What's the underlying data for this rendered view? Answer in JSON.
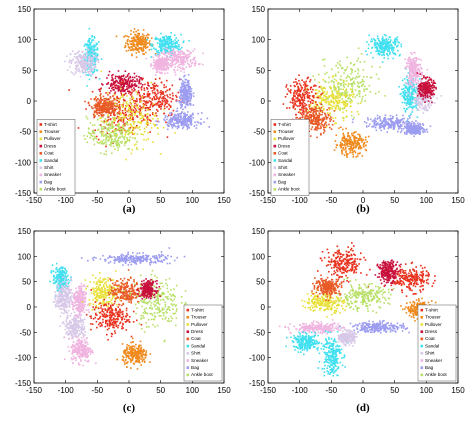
{
  "figure": {
    "classes": [
      "T-shirt",
      "Trouser",
      "Pullover",
      "Dress",
      "Coat",
      "Sandal",
      "Shirt",
      "Sneaker",
      "Bag",
      "Ankle boot"
    ],
    "class_colors": [
      "#e8301c",
      "#f08a1c",
      "#e8e038",
      "#c8103c",
      "#e85a26",
      "#40e0f0",
      "#d8c8e8",
      "#f0b4e0",
      "#9c9cf0",
      "#b8e068"
    ]
  },
  "chart_data": [
    {
      "type": "scatter",
      "panel_label": "(a)",
      "xlim": [
        -150,
        150
      ],
      "ylim": [
        -150,
        150
      ],
      "xticks": [
        -150,
        -100,
        -50,
        0,
        50,
        100,
        150
      ],
      "yticks": [
        -150,
        -100,
        -50,
        0,
        50,
        100,
        150
      ],
      "legend_position": "left",
      "legend": [
        "T-shirt",
        "Trouser",
        "Pullover",
        "Dress",
        "Coat",
        "Sandal",
        "Shirt",
        "Sneaker",
        "Bag",
        "Ankle boot"
      ],
      "series": [
        {
          "cls": 1,
          "clusters": [
            {
              "x": 15,
              "y": 95,
              "sx": 10,
              "sy": 9
            }
          ]
        },
        {
          "cls": 5,
          "clusters": [
            {
              "x": -60,
              "y": 72,
              "sx": 6,
              "sy": 14
            },
            {
              "x": 60,
              "y": 92,
              "sx": 11,
              "sy": 8
            }
          ]
        },
        {
          "cls": 6,
          "clusters": [
            {
              "x": -72,
              "y": 62,
              "sx": 10,
              "sy": 10
            }
          ]
        },
        {
          "cls": 7,
          "clusters": [
            {
              "x": 80,
              "y": 68,
              "sx": 14,
              "sy": 8
            },
            {
              "x": 50,
              "y": 60,
              "sx": 6,
              "sy": 6
            }
          ]
        },
        {
          "cls": 3,
          "clusters": [
            {
              "x": -10,
              "y": 28,
              "sx": 14,
              "sy": 8
            }
          ]
        },
        {
          "cls": 0,
          "clusters": [
            {
              "x": 40,
              "y": 5,
              "sx": 20,
              "sy": 15
            },
            {
              "x": -10,
              "y": -20,
              "sx": 25,
              "sy": 18
            }
          ]
        },
        {
          "cls": 2,
          "clusters": [
            {
              "x": 0,
              "y": -30,
              "sx": 22,
              "sy": 22
            }
          ]
        },
        {
          "cls": 9,
          "clusters": [
            {
              "x": -30,
              "y": -55,
              "sx": 18,
              "sy": 14
            }
          ]
        },
        {
          "cls": 4,
          "clusters": [
            {
              "x": -40,
              "y": -8,
              "sx": 10,
              "sy": 8
            }
          ]
        },
        {
          "cls": 8,
          "clusters": [
            {
              "x": 90,
              "y": 10,
              "sx": 5,
              "sy": 12
            },
            {
              "x": 82,
              "y": -32,
              "sx": 14,
              "sy": 6
            }
          ]
        }
      ]
    },
    {
      "type": "scatter",
      "panel_label": "(b)",
      "xlim": [
        -150,
        150
      ],
      "ylim": [
        -150,
        150
      ],
      "xticks": [
        -150,
        -100,
        -50,
        0,
        50,
        100,
        150
      ],
      "yticks": [
        -150,
        -100,
        -50,
        0,
        50,
        100,
        150
      ],
      "legend_position": "left",
      "legend": [
        "T-shirt",
        "Trouser",
        "Pullover",
        "Dress",
        "Coat",
        "Sandal",
        "Shirt",
        "Sneaker",
        "Bag",
        "Ankle boot"
      ],
      "series": [
        {
          "cls": 9,
          "clusters": [
            {
              "x": -25,
              "y": 25,
              "sx": 22,
              "sy": 22
            }
          ]
        },
        {
          "cls": 2,
          "clusters": [
            {
              "x": -50,
              "y": 0,
              "sx": 18,
              "sy": 15
            }
          ]
        },
        {
          "cls": 0,
          "clusters": [
            {
              "x": -95,
              "y": 5,
              "sx": 12,
              "sy": 15
            }
          ]
        },
        {
          "cls": 4,
          "clusters": [
            {
              "x": -75,
              "y": -30,
              "sx": 12,
              "sy": 10
            }
          ]
        },
        {
          "cls": 1,
          "clusters": [
            {
              "x": -20,
              "y": -70,
              "sx": 12,
              "sy": 9
            }
          ]
        },
        {
          "cls": 5,
          "clusters": [
            {
              "x": 35,
              "y": 90,
              "sx": 12,
              "sy": 8
            },
            {
              "x": 75,
              "y": 10,
              "sx": 6,
              "sy": 15
            }
          ]
        },
        {
          "cls": 6,
          "clusters": [
            {
              "x": 95,
              "y": 5,
              "sx": 8,
              "sy": 10
            }
          ]
        },
        {
          "cls": 7,
          "clusters": [
            {
              "x": 80,
              "y": 50,
              "sx": 6,
              "sy": 12
            }
          ]
        },
        {
          "cls": 8,
          "clusters": [
            {
              "x": 45,
              "y": -36,
              "sx": 20,
              "sy": 5
            },
            {
              "x": 80,
              "y": -46,
              "sx": 8,
              "sy": 4
            }
          ]
        },
        {
          "cls": 3,
          "clusters": [
            {
              "x": 100,
              "y": 20,
              "sx": 6,
              "sy": 8
            }
          ]
        }
      ]
    },
    {
      "type": "scatter",
      "panel_label": "(c)",
      "xlim": [
        -150,
        150
      ],
      "ylim": [
        -150,
        150
      ],
      "xticks": [
        -150,
        -100,
        -50,
        0,
        50,
        100,
        150
      ],
      "yticks": [
        -150,
        -100,
        -50,
        0,
        50,
        100,
        150
      ],
      "legend_position": "right",
      "legend": [
        "T-shirt",
        "Trouser",
        "Pullover",
        "Dress",
        "Coat",
        "Sandal",
        "Shirt",
        "Sneaker",
        "Bag",
        "Ankle boot"
      ],
      "series": [
        {
          "cls": 8,
          "clusters": [
            {
              "x": 10,
              "y": 95,
              "sx": 28,
              "sy": 5
            }
          ]
        },
        {
          "cls": 5,
          "clusters": [
            {
              "x": -108,
              "y": 55,
              "sx": 6,
              "sy": 12
            }
          ]
        },
        {
          "cls": 6,
          "clusters": [
            {
              "x": -103,
              "y": 20,
              "sx": 6,
              "sy": 15
            },
            {
              "x": -85,
              "y": -40,
              "sx": 8,
              "sy": 12
            }
          ]
        },
        {
          "cls": 7,
          "clusters": [
            {
              "x": -78,
              "y": 10,
              "sx": 5,
              "sy": 15
            },
            {
              "x": -75,
              "y": -85,
              "sx": 8,
              "sy": 12
            }
          ]
        },
        {
          "cls": 2,
          "clusters": [
            {
              "x": -40,
              "y": 30,
              "sx": 12,
              "sy": 15
            }
          ]
        },
        {
          "cls": 0,
          "clusters": [
            {
              "x": -30,
              "y": -20,
              "sx": 15,
              "sy": 15
            }
          ]
        },
        {
          "cls": 4,
          "clusters": [
            {
              "x": -5,
              "y": 30,
              "sx": 12,
              "sy": 12
            }
          ]
        },
        {
          "cls": 9,
          "clusters": [
            {
              "x": 45,
              "y": 10,
              "sx": 18,
              "sy": 25
            }
          ]
        },
        {
          "cls": 1,
          "clusters": [
            {
              "x": 10,
              "y": -95,
              "sx": 10,
              "sy": 10
            }
          ]
        },
        {
          "cls": 3,
          "clusters": [
            {
              "x": 30,
              "y": 35,
              "sx": 6,
              "sy": 8
            }
          ]
        }
      ]
    },
    {
      "type": "scatter",
      "panel_label": "(d)",
      "xlim": [
        -150,
        150
      ],
      "ylim": [
        -150,
        150
      ],
      "xticks": [
        -150,
        -100,
        -50,
        0,
        50,
        100,
        150
      ],
      "yticks": [
        -150,
        -100,
        -50,
        0,
        50,
        100,
        150
      ],
      "legend_position": "right",
      "legend": [
        "T-shirt",
        "Trouser",
        "Pullover",
        "Dress",
        "Coat",
        "Sandal",
        "Shirt",
        "Sneaker",
        "Bag",
        "Ankle boot"
      ],
      "series": [
        {
          "cls": 0,
          "clusters": [
            {
              "x": -30,
              "y": 85,
              "sx": 15,
              "sy": 15
            },
            {
              "x": 75,
              "y": 55,
              "sx": 15,
              "sy": 12
            }
          ]
        },
        {
          "cls": 3,
          "clusters": [
            {
              "x": 40,
              "y": 70,
              "sx": 8,
              "sy": 10
            }
          ]
        },
        {
          "cls": 2,
          "clusters": [
            {
              "x": -60,
              "y": 10,
              "sx": 15,
              "sy": 10
            }
          ]
        },
        {
          "cls": 9,
          "clusters": [
            {
              "x": 0,
              "y": 20,
              "sx": 20,
              "sy": 12
            }
          ]
        },
        {
          "cls": 4,
          "clusters": [
            {
              "x": -55,
              "y": 40,
              "sx": 10,
              "sy": 8
            }
          ]
        },
        {
          "cls": 1,
          "clusters": [
            {
              "x": 90,
              "y": -5,
              "sx": 10,
              "sy": 8
            }
          ]
        },
        {
          "cls": 7,
          "clusters": [
            {
              "x": -72,
              "y": -42,
              "sx": 20,
              "sy": 5
            }
          ]
        },
        {
          "cls": 8,
          "clusters": [
            {
              "x": 25,
              "y": -40,
              "sx": 20,
              "sy": 5
            }
          ]
        },
        {
          "cls": 5,
          "clusters": [
            {
              "x": -90,
              "y": -70,
              "sx": 10,
              "sy": 8
            },
            {
              "x": -50,
              "y": -95,
              "sx": 8,
              "sy": 20
            }
          ]
        },
        {
          "cls": 6,
          "clusters": [
            {
              "x": -25,
              "y": -60,
              "sx": 6,
              "sy": 6
            }
          ]
        }
      ]
    }
  ]
}
